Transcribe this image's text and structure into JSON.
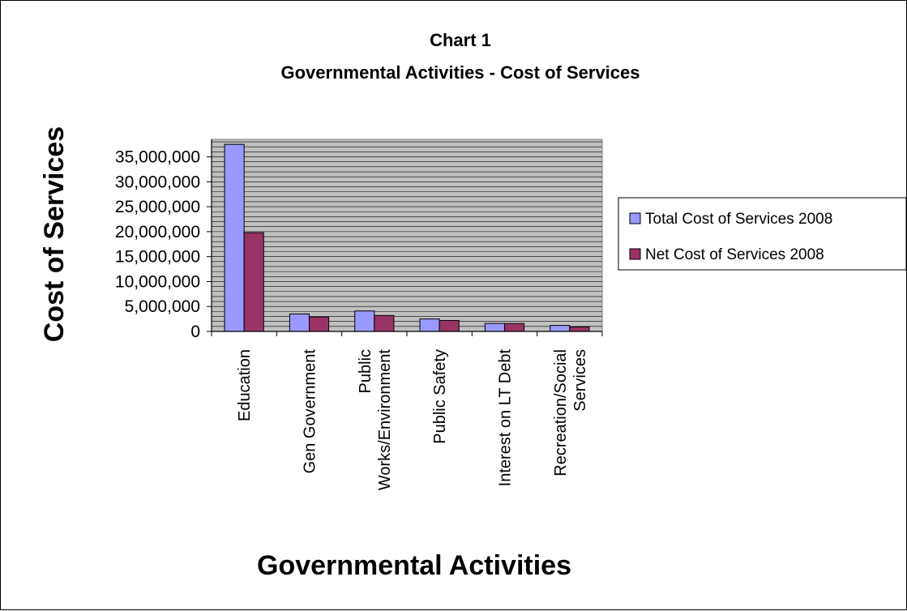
{
  "chart_data": {
    "type": "bar",
    "title": "Chart 1",
    "subtitle": "Governmental Activities - Cost of Services",
    "xlabel": "Governmental Activities",
    "ylabel": "Cost of Services",
    "categories": [
      [
        "Education"
      ],
      [
        "Gen Government"
      ],
      [
        "Public",
        "Works/Environment"
      ],
      [
        "Public Safety"
      ],
      [
        "Interest on LT Debt"
      ],
      [
        "Recreation/Social",
        "Services"
      ]
    ],
    "series": [
      {
        "name": "Total Cost of Services 2008",
        "color": "#9999ff",
        "values": [
          37500000,
          3500000,
          4100000,
          2500000,
          1600000,
          1200000
        ]
      },
      {
        "name": "Net Cost of Services 2008",
        "color": "#993366",
        "values": [
          19800000,
          2900000,
          3200000,
          2200000,
          1600000,
          900000
        ]
      }
    ],
    "ylim": [
      0,
      38500000
    ],
    "yticks": [
      0,
      5000000,
      10000000,
      15000000,
      20000000,
      25000000,
      30000000,
      35000000
    ],
    "ytick_labels": [
      "0",
      "5,000,000",
      "10,000,000",
      "15,000,000",
      "20,000,000",
      "25,000,000",
      "30,000,000",
      "35,000,000"
    ],
    "grid": true,
    "plot_background": "#c0c0c0",
    "legend_position": "right"
  }
}
